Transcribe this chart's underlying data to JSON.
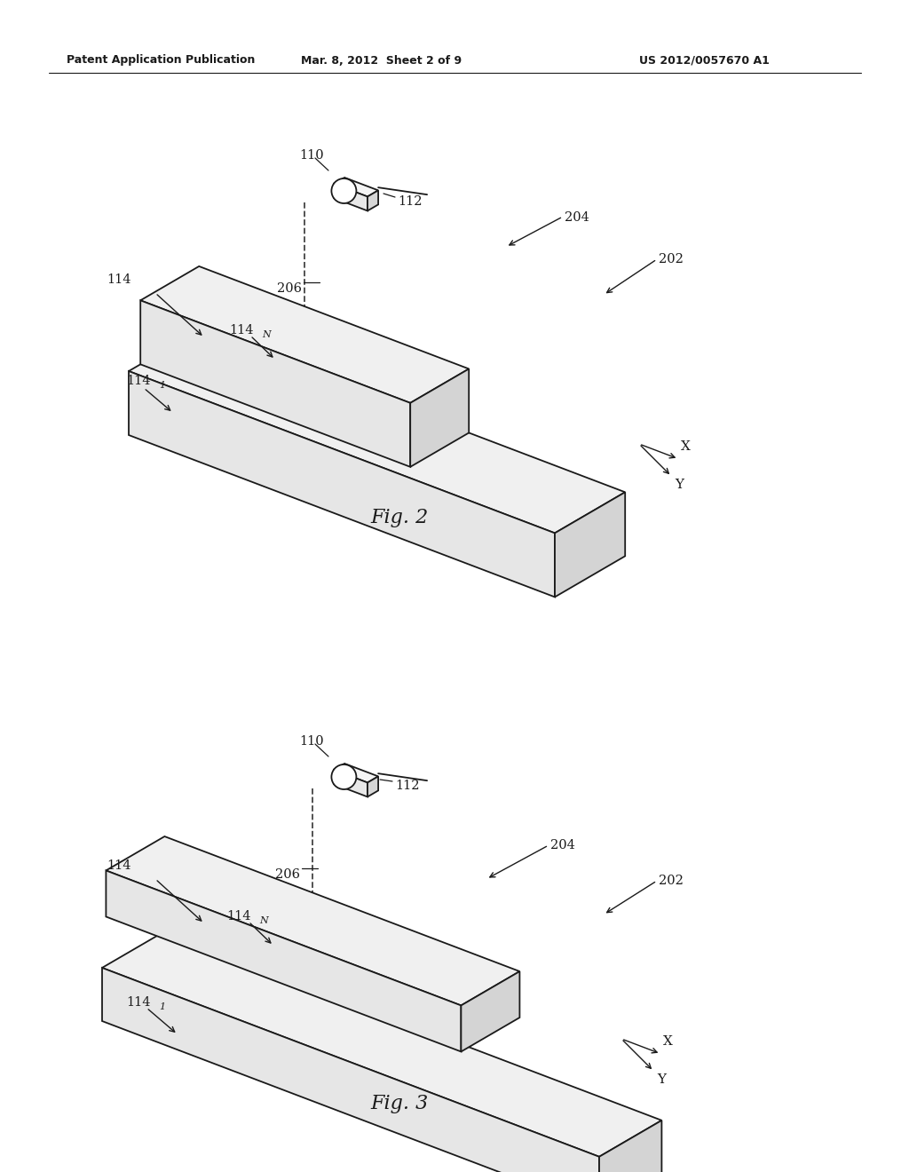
{
  "bg_color": "#ffffff",
  "line_color": "#1a1a1a",
  "header_left": "Patent Application Publication",
  "header_mid": "Mar. 8, 2012  Sheet 2 of 9",
  "header_right": "US 2012/0057670 A1",
  "fig2_label": "Fig. 2",
  "fig3_label": "Fig. 3"
}
